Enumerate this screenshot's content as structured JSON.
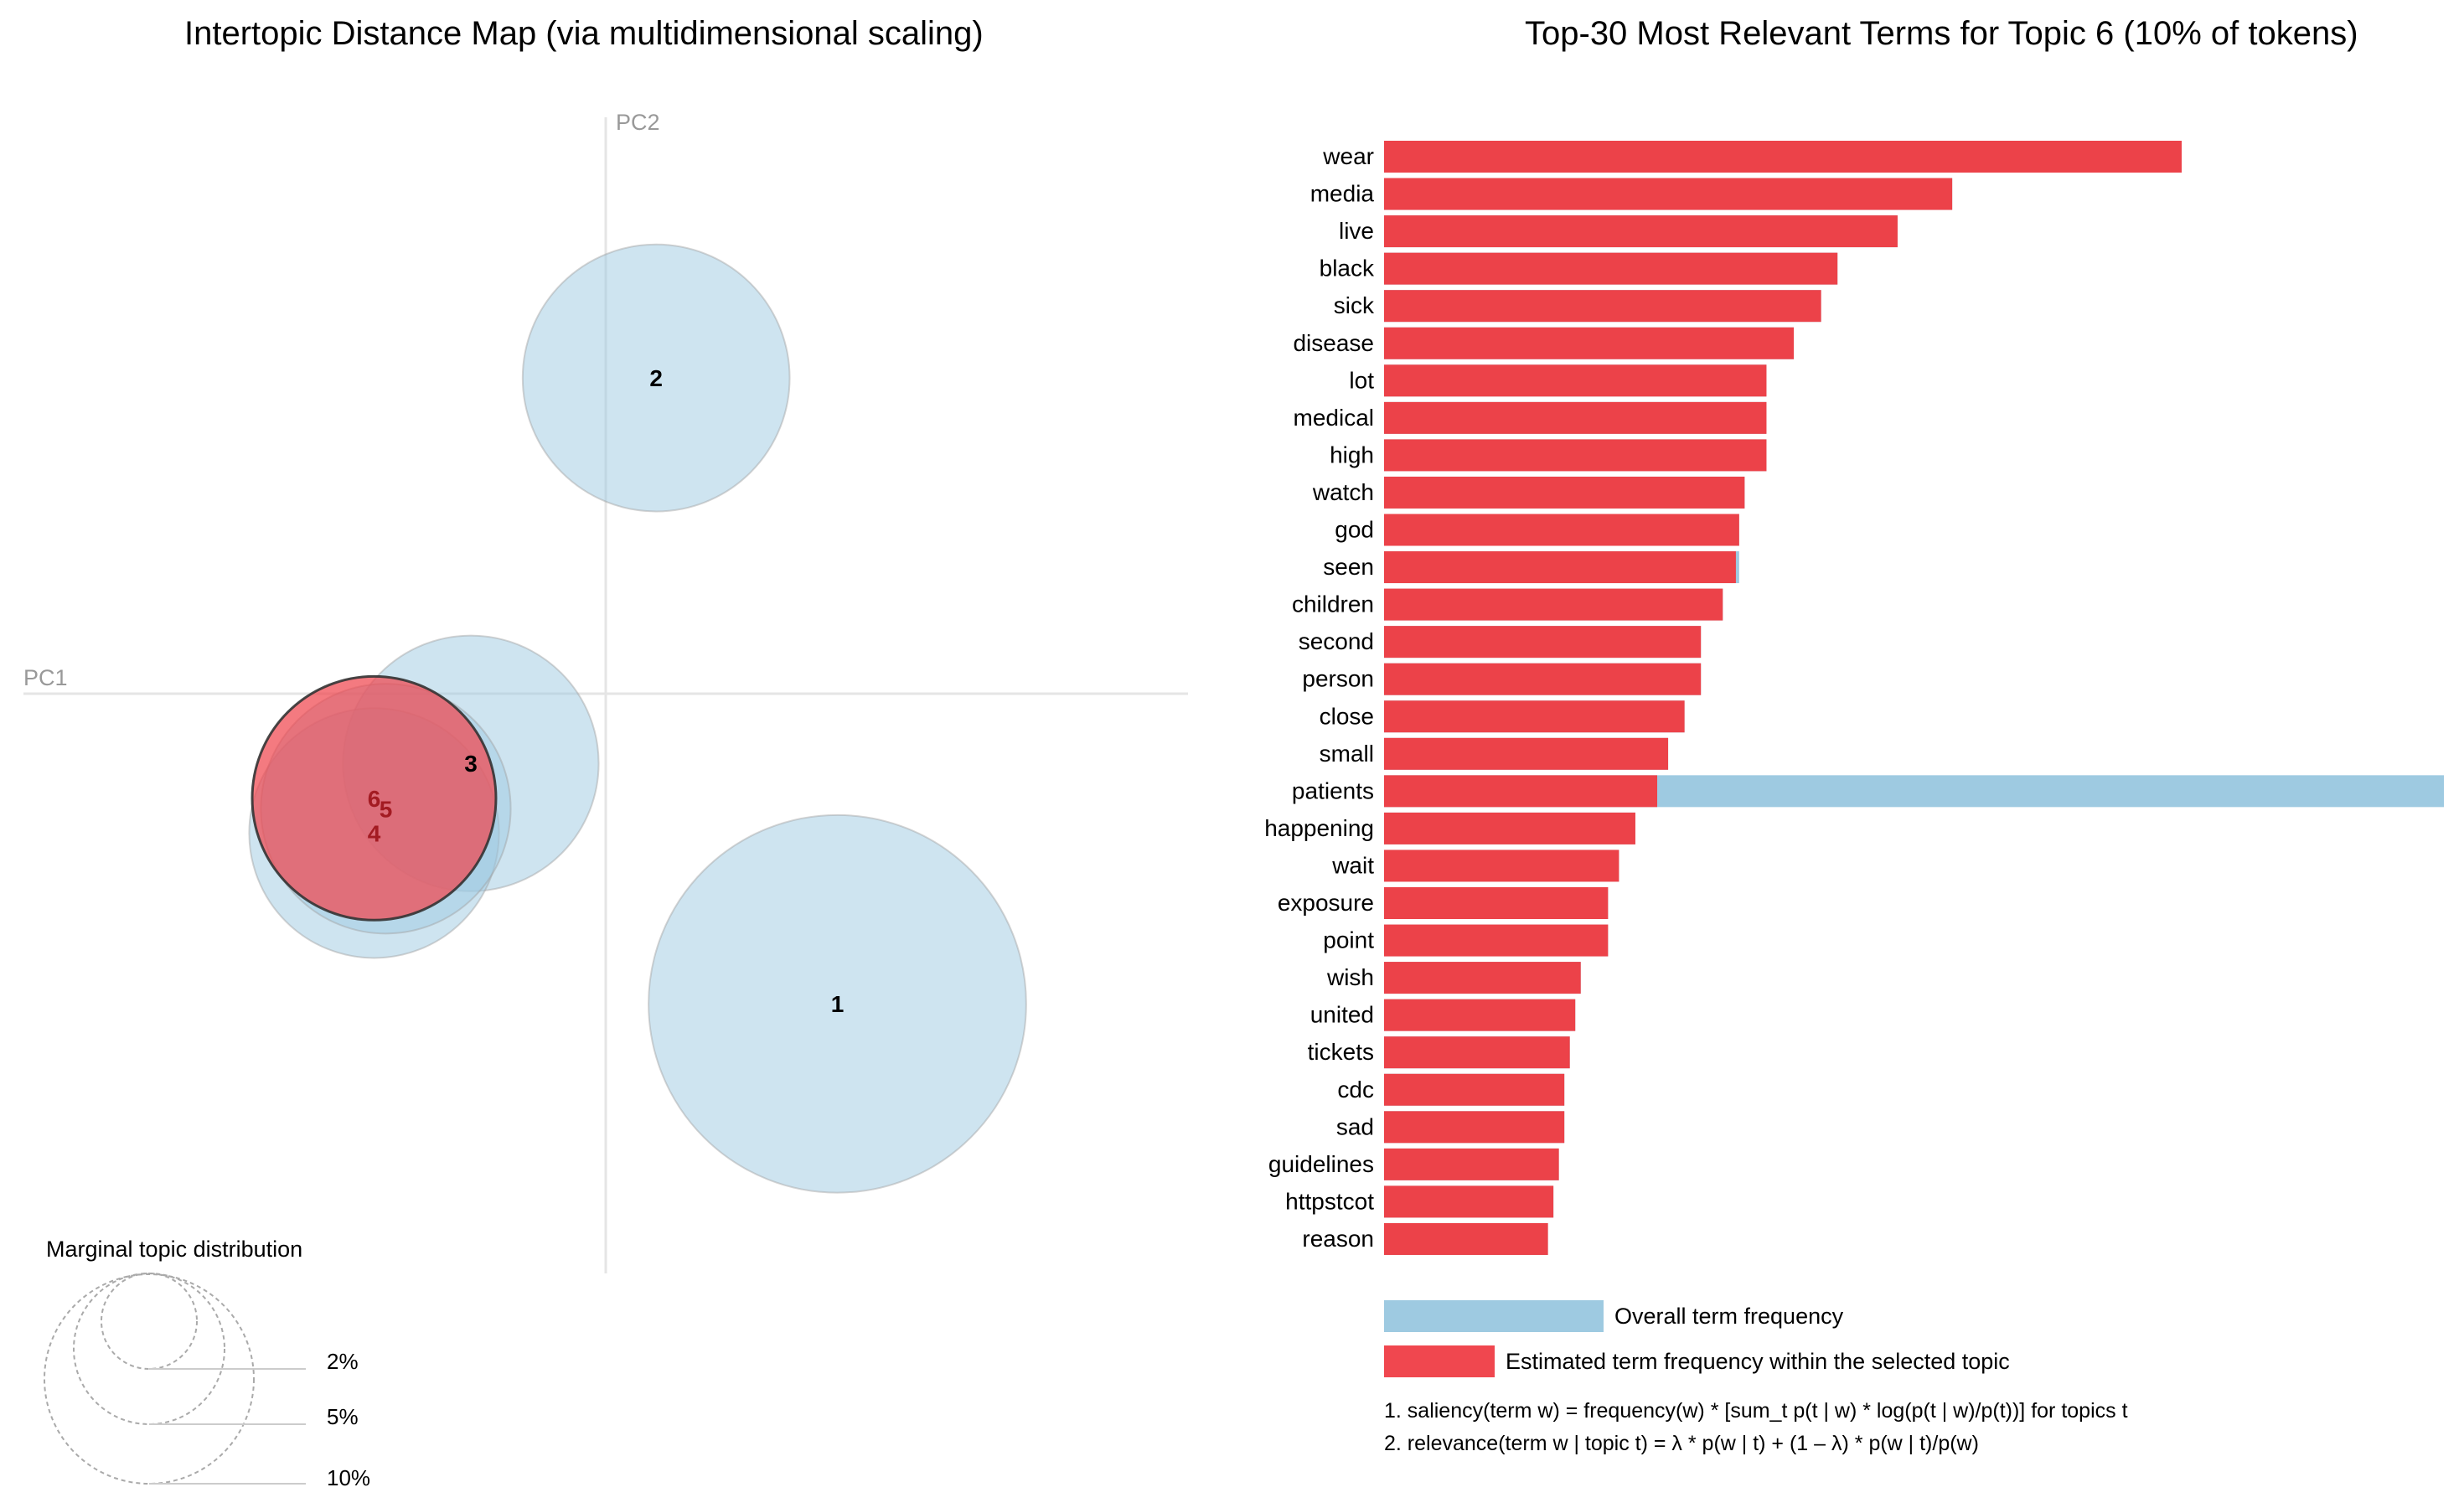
{
  "map": {
    "title": "Intertopic Distance Map (via multidimensional scaling)",
    "pc1_label": "PC1",
    "pc2_label": "PC2",
    "marginal_title": "Marginal topic distribution",
    "marginal_sizes": [
      "2%",
      "5%",
      "10%"
    ],
    "selected_topic": "6"
  },
  "bars": {
    "title": "Top-30 Most Relevant Terms for Topic 6 (10% of tokens)",
    "legend_overall": "Overall term frequency",
    "legend_estimated": "Estimated term frequency within the selected topic",
    "formula_1": "1. saliency(term w) = frequency(w) * [sum_t p(t | w) * log(p(t | w)/p(t))] for topics t",
    "formula_2": "2. relevance(term w | topic t) = λ * p(w | t) + (1 – λ) * p(w | t)/p(w)"
  },
  "colors": {
    "topic_fill": "#9ecae1",
    "topic_selected": "#f0474f",
    "overall_bar": "#9ecae1",
    "estimated_bar": "#ec4249",
    "axis": "#e5e5e5",
    "label_dark_red": "#a31b22"
  },
  "chart_data": [
    {
      "type": "scatter",
      "title": "Intertopic Distance Map (via multidimensional scaling)",
      "xlabel": "PC1",
      "ylabel": "PC2",
      "xlim": [
        -0.5,
        0.5
      ],
      "ylim": [
        -0.5,
        0.5
      ],
      "topics": [
        {
          "id": "1",
          "x": 0.395,
          "y": -0.445,
          "size_pct": 24.0
        },
        {
          "id": "2",
          "x": 0.086,
          "y": 0.453,
          "size_pct": 12.0
        },
        {
          "id": "3",
          "x": -0.23,
          "y": -0.1,
          "size_pct": 11.0
        },
        {
          "id": "4",
          "x": -0.395,
          "y": -0.2,
          "size_pct": 10.5
        },
        {
          "id": "5",
          "x": -0.375,
          "y": -0.165,
          "size_pct": 10.5
        },
        {
          "id": "6",
          "x": -0.395,
          "y": -0.15,
          "size_pct": 10.0
        }
      ]
    },
    {
      "type": "bar",
      "orientation": "horizontal",
      "title": "Top-30 Most Relevant Terms for Topic 6 (10% of tokens)",
      "categories": [
        "wear",
        "media",
        "live",
        "black",
        "sick",
        "disease",
        "lot",
        "medical",
        "high",
        "watch",
        "god",
        "seen",
        "children",
        "second",
        "person",
        "close",
        "small",
        "patients",
        "happening",
        "wait",
        "exposure",
        "point",
        "wish",
        "united",
        "tickets",
        "cdc",
        "sad",
        "guidelines",
        "httpstcot",
        "reason"
      ],
      "series": [
        {
          "name": "Overall term frequency",
          "values": [
            73,
            52,
            47,
            41.5,
            40,
            37.5,
            35,
            35,
            35,
            33,
            32.5,
            32.5,
            31,
            29,
            29,
            27.5,
            26,
            97,
            23,
            21.5,
            20.5,
            20.5,
            18,
            17.5,
            17,
            16.5,
            16.5,
            16,
            15.5,
            15
          ]
        },
        {
          "name": "Estimated term frequency within the selected topic",
          "values": [
            73,
            52,
            47,
            41.5,
            40,
            37.5,
            35,
            35,
            35,
            33,
            32.5,
            32.2,
            31,
            29,
            29,
            27.5,
            26,
            25,
            23,
            21.5,
            20.5,
            20.5,
            18,
            17.5,
            17,
            16.5,
            16.5,
            16,
            15.5,
            15
          ]
        }
      ],
      "xlim": [
        0,
        97
      ]
    }
  ]
}
